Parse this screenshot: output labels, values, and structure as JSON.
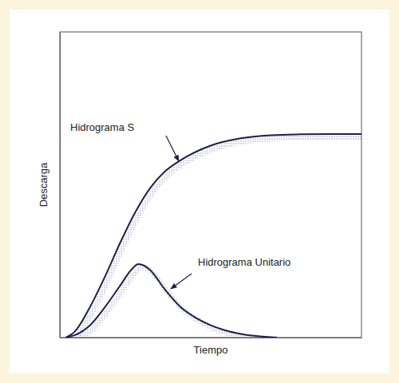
{
  "chart_data": {
    "type": "line",
    "x_label": "Tiempo",
    "y_label": "Descarga",
    "xlim": [
      0,
      100
    ],
    "ylim": [
      0,
      100
    ],
    "xticks": [],
    "yticks": [],
    "tick_labels": false,
    "grid": false,
    "series": [
      {
        "name": "Hidrograma S",
        "color": "#1c1f4a",
        "x": [
          2,
          5,
          10,
          15,
          20,
          25,
          30,
          35,
          40,
          50,
          60,
          70,
          80,
          90,
          100
        ],
        "values": [
          0,
          2,
          10,
          20,
          31,
          41,
          49,
          54.5,
          58,
          62.8,
          65.2,
          66.2,
          66.5,
          66.6,
          66.6
        ]
      },
      {
        "name": "Hidrograma Unitario",
        "color": "#1c1f4a",
        "x": [
          2,
          5,
          10,
          15,
          20,
          24,
          26,
          28,
          30,
          35,
          40,
          45,
          50,
          55,
          60,
          65,
          72
        ],
        "values": [
          0,
          0.8,
          4,
          10,
          17,
          22.5,
          24,
          23.5,
          22,
          15.5,
          10,
          6.5,
          4,
          2.3,
          1.2,
          0.5,
          0
        ]
      }
    ]
  }
}
